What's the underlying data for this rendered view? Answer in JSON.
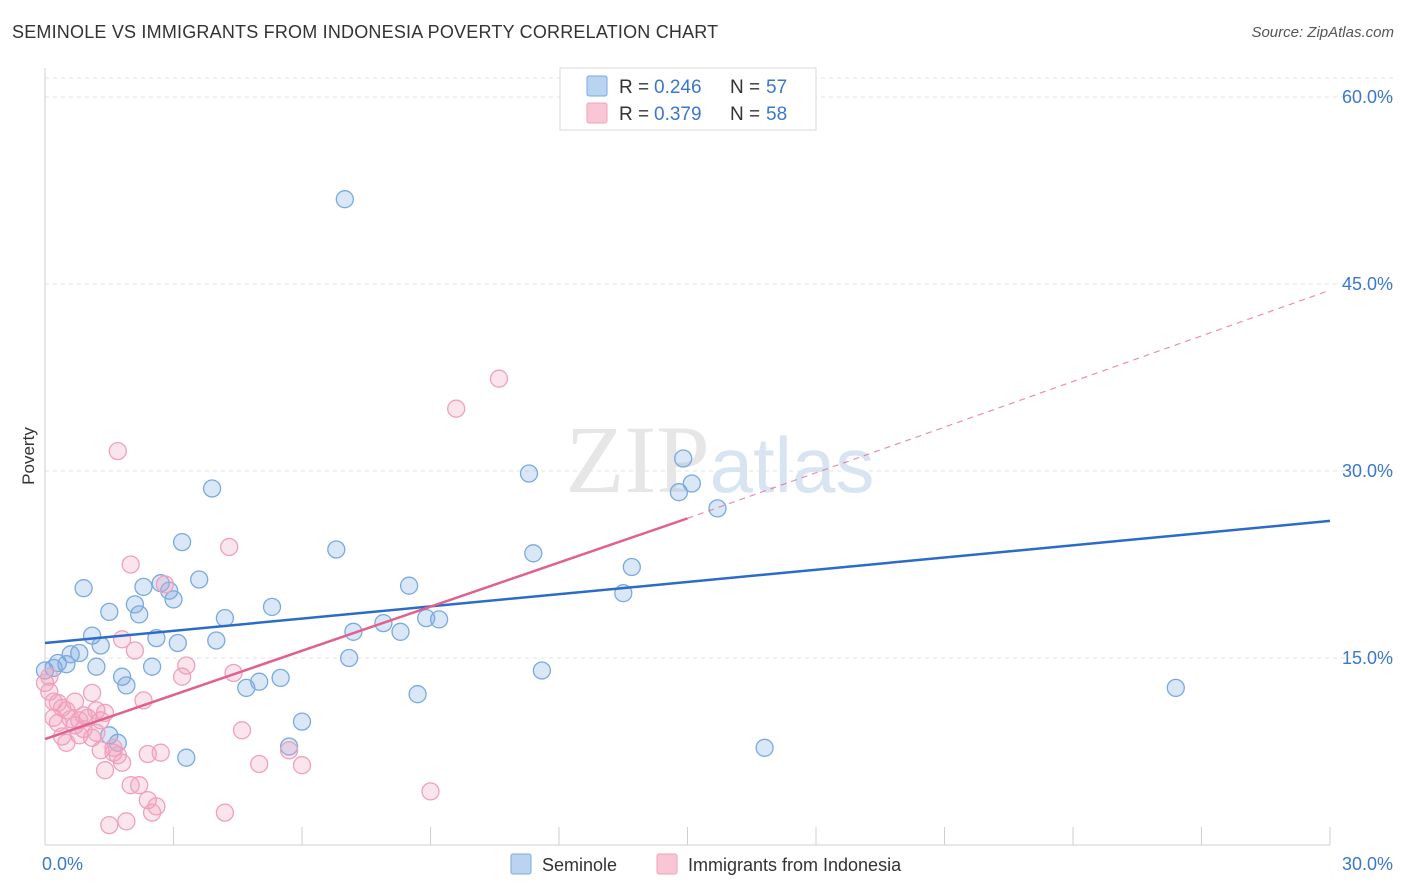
{
  "chart_data": {
    "type": "scatter",
    "title": "SEMINOLE VS IMMIGRANTS FROM INDONESIA POVERTY CORRELATION CHART",
    "source": "Source: ZipAtlas.com",
    "ylabel": "Poverty",
    "xlim": [
      0,
      30
    ],
    "ylim": [
      0,
      60
    ],
    "y_ticks": [
      15,
      30,
      45,
      60
    ],
    "y_tick_labels": [
      "15.0%",
      "30.0%",
      "45.0%",
      "60.0%"
    ],
    "x_tick_labels": [
      "0.0%",
      "30.0%"
    ],
    "watermark": "ZIPatlas",
    "legend": [
      {
        "r_label": "R =",
        "r_value": "0.246",
        "n_label": "N =",
        "n_value": "57"
      },
      {
        "r_label": "R =",
        "r_value": "0.379",
        "n_label": "N =",
        "n_value": "58"
      }
    ],
    "series": [
      {
        "name": "Seminole",
        "color": "#7aaae0",
        "line_color": "#2b6cc8",
        "trend": {
          "x": [
            0,
            30
          ],
          "y": [
            16.2,
            26.0
          ],
          "dashed_extension": false
        },
        "points": [
          [
            0.2,
            14.2
          ],
          [
            0.5,
            14.5
          ],
          [
            0.6,
            15.3
          ],
          [
            0.8,
            15.4
          ],
          [
            0.9,
            20.6
          ],
          [
            1.1,
            16.8
          ],
          [
            1.2,
            14.3
          ],
          [
            1.3,
            16.0
          ],
          [
            1.5,
            18.7
          ],
          [
            1.5,
            8.8
          ],
          [
            1.7,
            8.2
          ],
          [
            1.8,
            13.5
          ],
          [
            1.9,
            12.8
          ],
          [
            2.1,
            19.3
          ],
          [
            2.2,
            18.5
          ],
          [
            2.3,
            20.7
          ],
          [
            2.5,
            14.3
          ],
          [
            2.6,
            16.6
          ],
          [
            2.7,
            21.0
          ],
          [
            2.9,
            20.4
          ],
          [
            3.0,
            19.7
          ],
          [
            3.1,
            16.2
          ],
          [
            3.2,
            24.3
          ],
          [
            3.3,
            7.0
          ],
          [
            3.6,
            21.3
          ],
          [
            3.9,
            28.6
          ],
          [
            4.0,
            16.4
          ],
          [
            4.2,
            18.2
          ],
          [
            4.7,
            12.6
          ],
          [
            5.0,
            13.1
          ],
          [
            5.3,
            19.1
          ],
          [
            5.5,
            13.4
          ],
          [
            5.7,
            7.9
          ],
          [
            6.0,
            9.9
          ],
          [
            6.8,
            23.7
          ],
          [
            7.0,
            51.8
          ],
          [
            7.1,
            15.0
          ],
          [
            7.2,
            17.1
          ],
          [
            7.9,
            17.8
          ],
          [
            8.3,
            17.1
          ],
          [
            8.5,
            20.8
          ],
          [
            8.7,
            12.1
          ],
          [
            8.9,
            18.2
          ],
          [
            9.2,
            18.1
          ],
          [
            11.3,
            29.8
          ],
          [
            11.4,
            23.4
          ],
          [
            11.6,
            14.0
          ],
          [
            13.5,
            20.2
          ],
          [
            13.7,
            22.3
          ],
          [
            14.8,
            28.3
          ],
          [
            14.9,
            31.0
          ],
          [
            15.1,
            29.0
          ],
          [
            15.7,
            27.0
          ],
          [
            16.8,
            7.8
          ],
          [
            26.4,
            12.6
          ],
          [
            0.0,
            14.0
          ],
          [
            0.3,
            14.6
          ]
        ]
      },
      {
        "name": "Immigrants from Indonesia",
        "color": "#f0a0bc",
        "line_color": "#e0608f",
        "trend": {
          "x": [
            0,
            15
          ],
          "y": [
            8.5,
            26.2
          ],
          "dashed_extension": true,
          "extension_to": [
            30,
            44.5
          ]
        },
        "points": [
          [
            0.0,
            13.0
          ],
          [
            0.1,
            12.3
          ],
          [
            0.2,
            11.5
          ],
          [
            0.2,
            10.2
          ],
          [
            0.3,
            9.8
          ],
          [
            0.4,
            8.7
          ],
          [
            0.4,
            11.0
          ],
          [
            0.5,
            10.8
          ],
          [
            0.6,
            10.1
          ],
          [
            0.7,
            11.5
          ],
          [
            0.7,
            9.6
          ],
          [
            0.8,
            8.8
          ],
          [
            0.8,
            10.0
          ],
          [
            0.9,
            9.3
          ],
          [
            1.0,
            10.2
          ],
          [
            1.1,
            12.2
          ],
          [
            1.1,
            8.6
          ],
          [
            1.2,
            10.8
          ],
          [
            1.3,
            10.0
          ],
          [
            1.3,
            7.6
          ],
          [
            1.4,
            10.6
          ],
          [
            1.4,
            6.0
          ],
          [
            1.5,
            1.6
          ],
          [
            1.6,
            7.4
          ],
          [
            1.7,
            7.2
          ],
          [
            1.7,
            31.6
          ],
          [
            1.8,
            16.5
          ],
          [
            1.8,
            6.6
          ],
          [
            1.9,
            1.9
          ],
          [
            2.0,
            4.8
          ],
          [
            2.0,
            22.5
          ],
          [
            2.1,
            15.6
          ],
          [
            2.2,
            4.8
          ],
          [
            2.3,
            11.6
          ],
          [
            2.4,
            7.3
          ],
          [
            2.4,
            3.6
          ],
          [
            2.5,
            2.6
          ],
          [
            2.6,
            3.1
          ],
          [
            2.7,
            7.4
          ],
          [
            2.8,
            20.9
          ],
          [
            3.2,
            13.5
          ],
          [
            3.3,
            14.4
          ],
          [
            4.2,
            2.6
          ],
          [
            4.3,
            23.9
          ],
          [
            4.4,
            13.8
          ],
          [
            4.6,
            9.2
          ],
          [
            5.0,
            6.5
          ],
          [
            5.7,
            7.6
          ],
          [
            6.0,
            6.4
          ],
          [
            9.0,
            4.3
          ],
          [
            9.6,
            35.0
          ],
          [
            10.6,
            37.4
          ],
          [
            0.1,
            13.5
          ],
          [
            0.3,
            11.4
          ],
          [
            0.9,
            10.4
          ],
          [
            1.2,
            9.0
          ],
          [
            1.6,
            7.8
          ],
          [
            0.5,
            8.2
          ]
        ]
      }
    ],
    "bottom_legend": [
      "Seminole",
      "Immigrants from Indonesia"
    ]
  }
}
